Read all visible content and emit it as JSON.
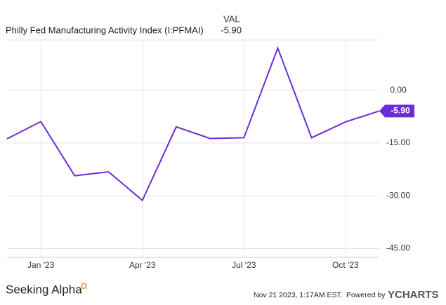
{
  "chart_data": {
    "type": "line",
    "title": "Philly Fed Manufacturing Activity Index (I:PFMAI)",
    "column_header": "VAL",
    "latest_value_label": "-5.90",
    "x": [
      "2022-12",
      "2023-01",
      "2023-02",
      "2023-03",
      "2023-04",
      "2023-05",
      "2023-06",
      "2023-07",
      "2023-08",
      "2023-09",
      "2023-10",
      "2023-11"
    ],
    "series": [
      {
        "name": "Philly Fed Manufacturing Activity Index (I:PFMAI)",
        "color": "#6c2bd9",
        "values": [
          -13.8,
          -8.9,
          -24.3,
          -23.2,
          -31.3,
          -10.4,
          -13.7,
          -13.5,
          12.0,
          -13.5,
          -9.0,
          -5.9
        ],
        "value_labels": [
          null,
          null,
          null,
          null,
          null,
          null,
          null,
          null,
          null,
          null,
          null,
          "-5.90"
        ]
      }
    ],
    "xlim": [
      "2022-12",
      "2023-11"
    ],
    "xticks": [
      {
        "value": "2023-01",
        "label": "Jan '23"
      },
      {
        "value": "2023-04",
        "label": "Apr '23"
      },
      {
        "value": "2023-07",
        "label": "Jul '23"
      },
      {
        "value": "2023-10",
        "label": "Oct '23"
      }
    ],
    "ylim": [
      -47.5,
      14.3
    ],
    "yticks": [
      {
        "value": 0,
        "label": "0.00"
      },
      {
        "value": -15,
        "label": "-15.00"
      },
      {
        "value": -30,
        "label": "-30.00"
      },
      {
        "value": -45,
        "label": "-45.00"
      }
    ],
    "grid": true,
    "footer": {
      "brand": "Seeking Alpha",
      "brand_symbol": "α",
      "timestamp": "Nov 21 2023, 1:17AM EST.",
      "powered_by": "Powered by",
      "provider": "YCHARTS"
    }
  }
}
